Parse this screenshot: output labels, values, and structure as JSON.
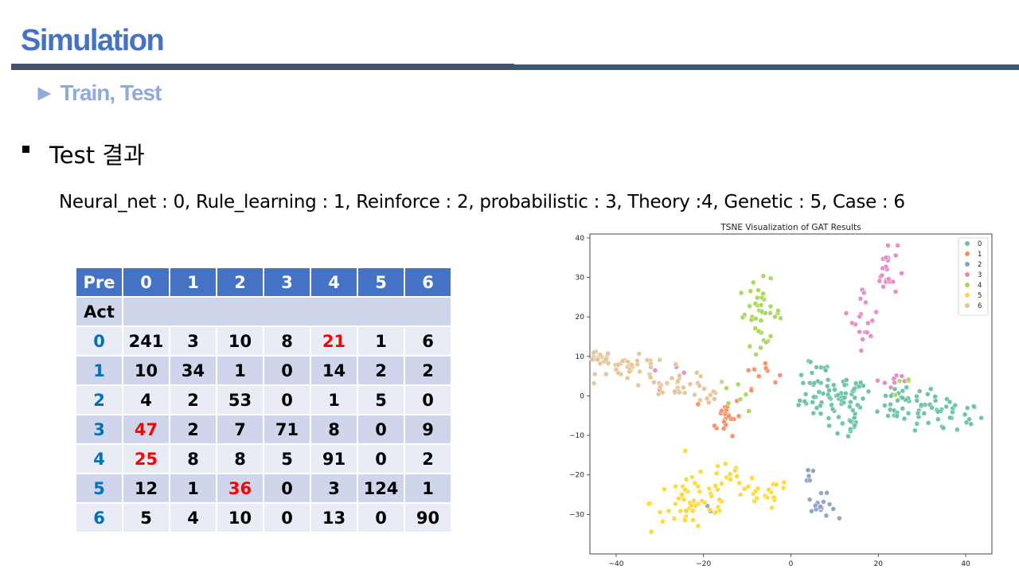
{
  "slide": {
    "title": "Simulation",
    "subtitle": "► Train, Test",
    "heading": "Test 결과",
    "class_legend": "Neural_net : 0, Rule_learning : 1, Reinforce : 2, probabilistic : 3, Theory :4, Genetic : 5, Case : 6"
  },
  "confusion_matrix": {
    "corner_pre": "Pre",
    "corner_act": "Act",
    "pred_labels": [
      "0",
      "1",
      "2",
      "3",
      "4",
      "5",
      "6"
    ],
    "rows": [
      {
        "label": "0",
        "values": [
          "241",
          "3",
          "10",
          "8",
          "21",
          "1",
          "6"
        ]
      },
      {
        "label": "1",
        "values": [
          "10",
          "34",
          "1",
          "0",
          "14",
          "2",
          "2"
        ]
      },
      {
        "label": "2",
        "values": [
          "4",
          "2",
          "53",
          "0",
          "1",
          "5",
          "0"
        ]
      },
      {
        "label": "3",
        "values": [
          "47",
          "2",
          "7",
          "71",
          "8",
          "0",
          "9"
        ]
      },
      {
        "label": "4",
        "values": [
          "25",
          "8",
          "8",
          "5",
          "91",
          "0",
          "2"
        ]
      },
      {
        "label": "5",
        "values": [
          "12",
          "1",
          "36",
          "0",
          "3",
          "124",
          "1"
        ]
      },
      {
        "label": "6",
        "values": [
          "5",
          "4",
          "10",
          "0",
          "13",
          "0",
          "90"
        ]
      }
    ],
    "highlight_color": "#ff0000"
  },
  "chart_data": {
    "type": "scatter",
    "title": "TSNE Visualization of GAT Results",
    "xlim": [
      -46,
      46
    ],
    "ylim": [
      -40,
      41
    ],
    "xticks": [
      -40,
      -20,
      0,
      20,
      40
    ],
    "yticks": [
      -30,
      -20,
      -10,
      0,
      10,
      20,
      30,
      40
    ],
    "legend_position": "top-right",
    "series": [
      {
        "name": "0",
        "color": "#66c2a5",
        "clusters": [
          [
            10,
            -1,
            4,
            2.5,
            45
          ],
          [
            26,
            -2,
            4,
            2.5,
            40
          ],
          [
            36,
            -5,
            4,
            2.5,
            30
          ],
          [
            13,
            -6,
            1.5,
            2.5,
            18
          ],
          [
            5,
            6,
            2.5,
            2.5,
            14
          ],
          [
            15,
            2,
            3,
            2,
            15
          ]
        ]
      },
      {
        "name": "1",
        "color": "#fc8d62",
        "clusters": [
          [
            -15,
            -5,
            1.8,
            2.5,
            22
          ],
          [
            -7,
            6,
            2,
            2,
            10
          ]
        ]
      },
      {
        "name": "2",
        "color": "#8da0cb",
        "clusters": [
          [
            7,
            -28,
            1.5,
            1.5,
            16
          ],
          [
            4,
            -20,
            1,
            1.5,
            6
          ],
          [
            -20,
            -28,
            2,
            1.5,
            4
          ]
        ]
      },
      {
        "name": "3",
        "color": "#e78ac3",
        "clusters": [
          [
            22,
            32,
            1.2,
            3.5,
            22
          ],
          [
            17,
            20,
            1.5,
            4,
            18
          ],
          [
            -28,
            5,
            2,
            1,
            4
          ],
          [
            23,
            4,
            3,
            1.5,
            8
          ]
        ]
      },
      {
        "name": "4",
        "color": "#a6d854",
        "clusters": [
          [
            -7,
            21,
            2.5,
            4,
            40
          ],
          [
            -13,
            0,
            1.5,
            1.5,
            6
          ],
          [
            26,
            3,
            1.5,
            1.5,
            4
          ]
        ]
      },
      {
        "name": "5",
        "color": "#ffd92f",
        "clusters": [
          [
            -22,
            -27,
            5,
            4,
            55
          ],
          [
            -8,
            -25,
            4,
            2,
            22
          ],
          [
            -14,
            -20,
            2,
            1.5,
            10
          ]
        ]
      },
      {
        "name": "6",
        "color": "#e5c494",
        "clusters": [
          [
            -44,
            9.5,
            1.5,
            0.8,
            18
          ],
          [
            -36,
            7,
            4,
            1.5,
            30
          ],
          [
            -26,
            3,
            4,
            1.5,
            30
          ],
          [
            -17,
            0,
            2,
            1.5,
            8
          ]
        ]
      }
    ]
  }
}
